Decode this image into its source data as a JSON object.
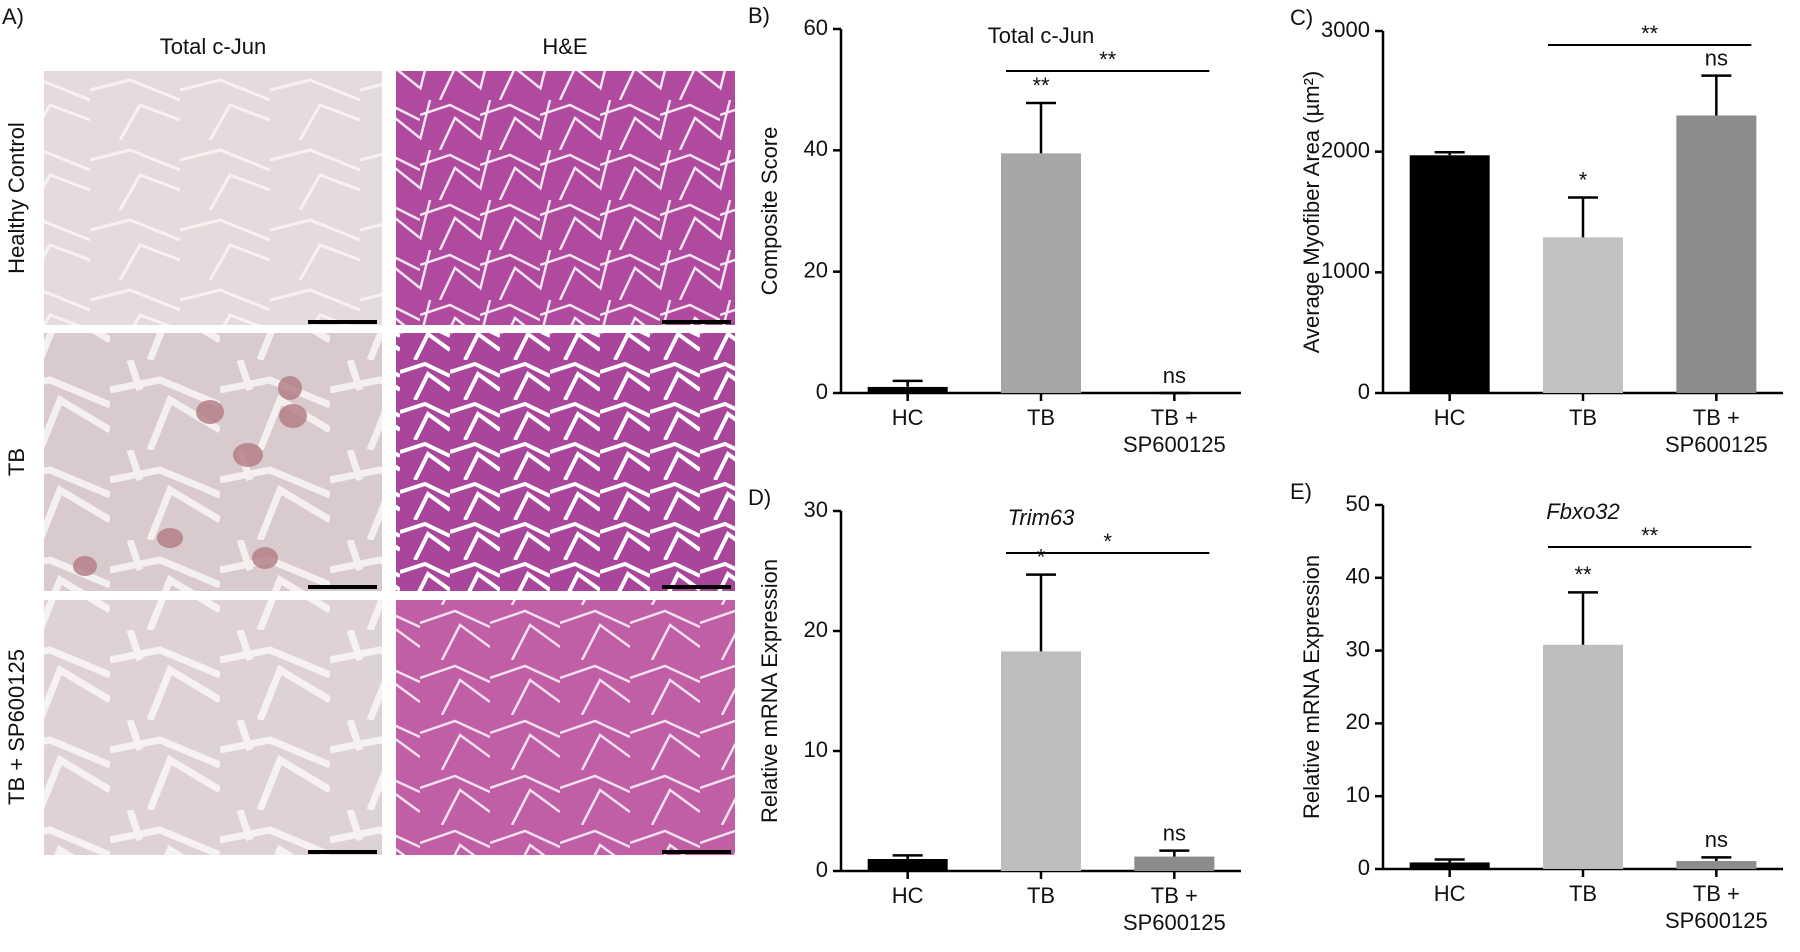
{
  "panel_a": {
    "label": "A)",
    "columns": [
      "Total c-Jun",
      "H&E"
    ],
    "rows": [
      "Healthy Control",
      "TB",
      "TB + SP600125"
    ]
  },
  "chart_data": [
    {
      "type": "bar",
      "panel_label": "B)",
      "title": "Total c-Jun",
      "ylabel": "Composite Score",
      "categories": [
        "HC",
        "TB",
        "TB +\nSP600125"
      ],
      "values": [
        1,
        39.5,
        0
      ],
      "errors": [
        1,
        8.3,
        0
      ],
      "colors": [
        "#000000",
        "#a6a6a6",
        "#a6a6a6"
      ],
      "significance": [
        null,
        "**",
        "ns"
      ],
      "bracket_label": "**",
      "ylim": [
        0,
        60
      ],
      "yticks": [
        0,
        20,
        40,
        60
      ]
    },
    {
      "type": "bar",
      "panel_label": "C)",
      "ylabel": "Average Myofiber Area (µm²)",
      "categories": [
        "HC",
        "TB",
        "TB +\nSP600125"
      ],
      "values": [
        1970,
        1290,
        2300
      ],
      "errors": [
        25,
        330,
        330
      ],
      "colors": [
        "#000000",
        "#c2c2c2",
        "#8c8c8c"
      ],
      "significance": [
        null,
        "*",
        "ns"
      ],
      "bracket_label": "**",
      "ylim": [
        0,
        3000
      ],
      "yticks": [
        0,
        1000,
        2000,
        3000
      ]
    },
    {
      "type": "bar",
      "panel_label": "D)",
      "title": "Trim63",
      "title_italic": true,
      "ylabel": "Relative mRNA Expression",
      "categories": [
        "HC",
        "TB",
        "TB +\nSP600125"
      ],
      "values": [
        1,
        18.3,
        1.2
      ],
      "errors": [
        0.3,
        6.4,
        0.5
      ],
      "colors": [
        "#000000",
        "#bdbdbd",
        "#8c8c8c"
      ],
      "significance": [
        null,
        "*",
        "ns"
      ],
      "bracket_label": "*",
      "ylim": [
        0,
        30
      ],
      "yticks": [
        0,
        10,
        20,
        30
      ]
    },
    {
      "type": "bar",
      "panel_label": "E)",
      "title": "Fbxo32",
      "title_italic": true,
      "ylabel": "Relative mRNA Expression",
      "categories": [
        "HC",
        "TB",
        "TB +\nSP600125"
      ],
      "values": [
        0.9,
        30.8,
        1.1
      ],
      "errors": [
        0.4,
        7.2,
        0.5
      ],
      "colors": [
        "#000000",
        "#bdbdbd",
        "#8c8c8c"
      ],
      "significance": [
        null,
        "**",
        "ns"
      ],
      "bracket_label": "**",
      "ylim": [
        0,
        50
      ],
      "yticks": [
        0,
        10,
        20,
        30,
        40,
        50
      ]
    }
  ]
}
